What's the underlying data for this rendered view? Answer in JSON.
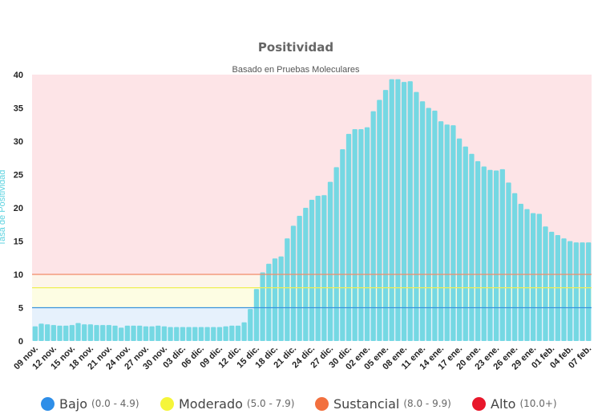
{
  "chart_data": {
    "type": "bar",
    "title": "Positividad",
    "subtitle": "Basado en Pruebas Moleculares",
    "xlabel": "",
    "ylabel": "Tasa de Positividad",
    "ylim": [
      0,
      40
    ],
    "yticks": [
      0,
      5,
      10,
      15,
      20,
      25,
      30,
      35,
      40
    ],
    "grid": false,
    "legend_position": "bottom",
    "bar_color": "#75d8e3",
    "categories": [
      "09 nov.",
      "10 nov.",
      "11 nov.",
      "12 nov.",
      "13 nov.",
      "14 nov.",
      "15 nov.",
      "16 nov.",
      "17 nov.",
      "18 nov.",
      "19 nov.",
      "20 nov.",
      "21 nov.",
      "22 nov.",
      "23 nov.",
      "24 nov.",
      "25 nov.",
      "26 nov.",
      "27 nov.",
      "28 nov.",
      "29 nov.",
      "30 nov.",
      "01 dic.",
      "02 dic.",
      "03 dic.",
      "04 dic.",
      "05 dic.",
      "06 dic.",
      "07 dic.",
      "08 dic.",
      "09 dic.",
      "10 dic.",
      "11 dic.",
      "12 dic.",
      "13 dic.",
      "14 dic.",
      "15 dic.",
      "16 dic.",
      "17 dic.",
      "18 dic.",
      "19 dic.",
      "20 dic.",
      "21 dic.",
      "22 dic.",
      "23 dic.",
      "24 dic.",
      "25 dic.",
      "26 dic.",
      "27 dic.",
      "28 dic.",
      "29 dic.",
      "30 dic.",
      "31 dic.",
      "01 ene.",
      "02 ene.",
      "03 ene.",
      "04 ene.",
      "05 ene.",
      "06 ene.",
      "07 ene.",
      "08 ene.",
      "09 ene.",
      "10 ene.",
      "11 ene.",
      "12 ene.",
      "13 ene.",
      "14 ene.",
      "15 ene.",
      "16 ene.",
      "17 ene.",
      "18 ene.",
      "19 ene.",
      "20 ene.",
      "21 ene.",
      "22 ene.",
      "23 ene.",
      "24 ene.",
      "25 ene.",
      "26 ene.",
      "27 ene.",
      "28 ene.",
      "29 ene.",
      "30 ene.",
      "31 ene.",
      "01 feb.",
      "02 feb.",
      "03 feb.",
      "04 feb.",
      "05 feb.",
      "06 feb.",
      "07 feb."
    ],
    "tick_labels": [
      "09 nov.",
      "12 nov.",
      "15 nov.",
      "18 nov.",
      "21 nov.",
      "24 nov.",
      "27 nov.",
      "30 nov.",
      "03 dic.",
      "06 dic.",
      "09 dic.",
      "12 dic.",
      "15 dic.",
      "18 dic.",
      "21 dic.",
      "24 dic.",
      "27 dic.",
      "30 dic.",
      "02 ene.",
      "05 ene.",
      "08 ene.",
      "11 ene.",
      "14 ene.",
      "17 ene.",
      "20 ene.",
      "23 ene.",
      "26 ene.",
      "29 ene.",
      "01 feb.",
      "04 feb.",
      "07 feb."
    ],
    "values": [
      2.2,
      2.6,
      2.5,
      2.4,
      2.3,
      2.3,
      2.4,
      2.7,
      2.5,
      2.5,
      2.4,
      2.4,
      2.4,
      2.3,
      2.0,
      2.3,
      2.3,
      2.3,
      2.2,
      2.2,
      2.3,
      2.2,
      2.1,
      2.1,
      2.1,
      2.1,
      2.1,
      2.1,
      2.1,
      2.1,
      2.1,
      2.2,
      2.3,
      2.3,
      2.8,
      4.8,
      7.8,
      10.3,
      11.6,
      12.4,
      12.7,
      15.4,
      17.3,
      18.8,
      20.0,
      21.2,
      21.8,
      21.9,
      23.9,
      26.1,
      28.8,
      31.1,
      31.8,
      31.8,
      32.1,
      34.5,
      36.2,
      37.7,
      39.3,
      39.3,
      38.9,
      39.0,
      37.4,
      36.0,
      35.0,
      34.6,
      33.0,
      32.5,
      32.4,
      30.4,
      29.2,
      28.1,
      27.0,
      26.2,
      25.7,
      25.6,
      25.8,
      23.8,
      22.2,
      20.6,
      19.8,
      19.2,
      19.1,
      17.2,
      16.4,
      15.9,
      15.4,
      15.0,
      14.8,
      14.8,
      14.8
    ],
    "bands": [
      {
        "name": "Bajo",
        "min": 0,
        "max": 5,
        "fill": "#e6f1fc",
        "line": "#3a95dd"
      },
      {
        "name": "Moderado",
        "min": 5,
        "max": 8,
        "fill": "#fdfde3",
        "line": "#eeee55"
      },
      {
        "name": "Sustancial",
        "min": 8,
        "max": 10,
        "fill": "#fdf5ea",
        "line": "#f28a68"
      },
      {
        "name": "Alto",
        "min": 10,
        "max": 40,
        "fill": "#fde4e7",
        "line": null
      }
    ]
  },
  "legend": [
    {
      "name": "Bajo",
      "range": "(0.0 - 4.9)",
      "color": "#2e8ee8"
    },
    {
      "name": "Moderado",
      "range": "(5.0 - 7.9)",
      "color": "#f5f53a"
    },
    {
      "name": "Sustancial",
      "range": "(8.0 - 9.9)",
      "color": "#f2703e"
    },
    {
      "name": "Alto",
      "range": "(10.0+)",
      "color": "#e8172b"
    }
  ]
}
